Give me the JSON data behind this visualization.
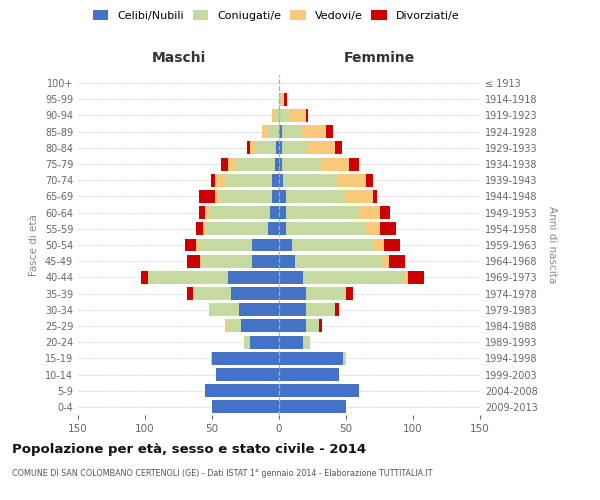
{
  "age_groups": [
    "0-4",
    "5-9",
    "10-14",
    "15-19",
    "20-24",
    "25-29",
    "30-34",
    "35-39",
    "40-44",
    "45-49",
    "50-54",
    "55-59",
    "60-64",
    "65-69",
    "70-74",
    "75-79",
    "80-84",
    "85-89",
    "90-94",
    "95-99",
    "100+"
  ],
  "birth_years": [
    "2009-2013",
    "2004-2008",
    "1999-2003",
    "1994-1998",
    "1989-1993",
    "1984-1988",
    "1979-1983",
    "1974-1978",
    "1969-1973",
    "1964-1968",
    "1959-1963",
    "1954-1958",
    "1949-1953",
    "1944-1948",
    "1939-1943",
    "1934-1938",
    "1929-1933",
    "1924-1928",
    "1919-1923",
    "1914-1918",
    "≤ 1913"
  ],
  "males": {
    "celibi": [
      50,
      55,
      47,
      50,
      22,
      28,
      30,
      36,
      38,
      20,
      20,
      8,
      7,
      5,
      5,
      3,
      2,
      0,
      0,
      0,
      0
    ],
    "coniugati": [
      0,
      0,
      0,
      1,
      4,
      10,
      22,
      28,
      60,
      38,
      40,
      47,
      45,
      40,
      35,
      30,
      15,
      8,
      2,
      0,
      0
    ],
    "vedovi": [
      0,
      0,
      0,
      0,
      0,
      2,
      0,
      0,
      0,
      1,
      2,
      2,
      3,
      3,
      8,
      5,
      5,
      5,
      3,
      0,
      0
    ],
    "divorziati": [
      0,
      0,
      0,
      0,
      0,
      0,
      0,
      5,
      5,
      10,
      8,
      5,
      5,
      12,
      3,
      5,
      2,
      0,
      0,
      0,
      0
    ]
  },
  "females": {
    "nubili": [
      50,
      60,
      45,
      48,
      18,
      20,
      20,
      20,
      18,
      12,
      10,
      5,
      5,
      5,
      3,
      2,
      2,
      2,
      0,
      0,
      0
    ],
    "coniugate": [
      0,
      0,
      0,
      2,
      5,
      10,
      22,
      30,
      75,
      65,
      60,
      60,
      55,
      45,
      40,
      30,
      20,
      15,
      8,
      2,
      0
    ],
    "vedove": [
      0,
      0,
      0,
      0,
      0,
      0,
      0,
      0,
      3,
      5,
      8,
      10,
      15,
      20,
      22,
      20,
      20,
      18,
      12,
      2,
      0
    ],
    "divorziate": [
      0,
      0,
      0,
      0,
      0,
      2,
      3,
      5,
      12,
      12,
      12,
      12,
      8,
      3,
      5,
      8,
      5,
      5,
      2,
      2,
      0
    ]
  },
  "colors": {
    "celibi": "#4472c4",
    "coniugati": "#c5d9a0",
    "vedovi": "#f9c97a",
    "divorziati": "#cc0000"
  },
  "xlim": 150,
  "title": "Popolazione per età, sesso e stato civile - 2014",
  "subtitle": "COMUNE DI SAN COLOMBANO CERTENOLI (GE) - Dati ISTAT 1° gennaio 2014 - Elaborazione TUTTITALIA.IT",
  "legend_labels": [
    "Celibi/Nubili",
    "Coniugati/e",
    "Vedovi/e",
    "Divorziati/e"
  ],
  "xlabel_left": "Maschi",
  "xlabel_right": "Femmine",
  "ylabel_left": "Fasce di età",
  "ylabel_right": "Anni di nascita",
  "bg_color": "#ffffff",
  "grid_color": "#cccccc"
}
